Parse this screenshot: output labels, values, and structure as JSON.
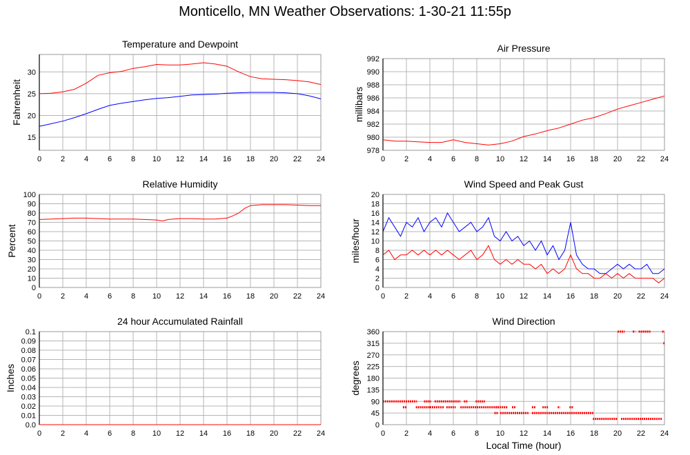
{
  "page": {
    "title": "Monticello, MN Weather Observations: 1-30-21 11:55p"
  },
  "colors": {
    "red": "#ff0000",
    "blue": "#0000ff",
    "grid": "#b4b4b4",
    "frame": "#999999"
  },
  "chart_data": [
    {
      "id": "temp",
      "type": "line",
      "title": "Temperature and Dewpoint",
      "ylabel": "Fahrenheit",
      "xlabel": "",
      "xlim": [
        0,
        24
      ],
      "ylim": [
        12,
        34
      ],
      "yticks": [
        15,
        20,
        25,
        30
      ],
      "xticks": [
        0,
        2,
        4,
        6,
        8,
        10,
        12,
        14,
        16,
        18,
        20,
        22,
        24
      ],
      "grid": true,
      "series": [
        {
          "color": "red",
          "x": [
            0,
            1,
            2,
            3,
            4,
            5,
            6,
            7,
            8,
            9,
            10,
            11,
            12,
            13,
            14,
            15,
            16,
            17,
            18,
            19,
            20,
            21,
            22,
            23,
            24
          ],
          "values": [
            25,
            25.1,
            25.4,
            26,
            27.4,
            29.2,
            29.8,
            30.1,
            30.8,
            31.2,
            31.7,
            31.6,
            31.6,
            31.8,
            32.1,
            31.8,
            31.3,
            30,
            28.9,
            28.4,
            28.3,
            28.2,
            28,
            27.7,
            27.1
          ]
        },
        {
          "color": "blue",
          "x": [
            0,
            1,
            2,
            3,
            4,
            5,
            6,
            7,
            8,
            9,
            10,
            11,
            12,
            13,
            14,
            15,
            16,
            17,
            18,
            19,
            20,
            21,
            22,
            23,
            24
          ],
          "values": [
            17.5,
            18.1,
            18.7,
            19.5,
            20.4,
            21.4,
            22.3,
            22.8,
            23.2,
            23.6,
            23.9,
            24.1,
            24.4,
            24.7,
            24.8,
            24.9,
            25.1,
            25.2,
            25.3,
            25.3,
            25.3,
            25.2,
            25,
            24.5,
            23.8
          ]
        }
      ]
    },
    {
      "id": "pressure",
      "type": "line",
      "title": "Air Pressure",
      "ylabel": "millibars",
      "xlabel": "",
      "xlim": [
        0,
        24
      ],
      "ylim": [
        978,
        992
      ],
      "yticks": [
        978,
        980,
        982,
        984,
        986,
        988,
        990,
        992
      ],
      "xticks": [
        0,
        2,
        4,
        6,
        8,
        10,
        12,
        14,
        16,
        18,
        20,
        22,
        24
      ],
      "grid": true,
      "series": [
        {
          "color": "red",
          "x": [
            0,
            1,
            2,
            3,
            4,
            5,
            6,
            7,
            8,
            9,
            10,
            11,
            12,
            13,
            14,
            15,
            16,
            17,
            18,
            19,
            20,
            21,
            22,
            23,
            24
          ],
          "values": [
            979.6,
            979.4,
            979.4,
            979.3,
            979.2,
            979.2,
            979.6,
            979.2,
            979,
            978.8,
            979,
            979.4,
            980.1,
            980.5,
            981,
            981.4,
            982,
            982.6,
            983,
            983.6,
            984.3,
            984.8,
            985.3,
            985.8,
            986.3
          ]
        }
      ]
    },
    {
      "id": "humidity",
      "type": "line",
      "title": "Relative Humidity",
      "ylabel": "Percent",
      "xlabel": "",
      "xlim": [
        0,
        24
      ],
      "ylim": [
        0,
        100
      ],
      "yticks": [
        0,
        10,
        20,
        30,
        40,
        50,
        60,
        70,
        80,
        90,
        100
      ],
      "xticks": [
        0,
        2,
        4,
        6,
        8,
        10,
        12,
        14,
        16,
        18,
        20,
        22,
        24
      ],
      "grid": true,
      "series": [
        {
          "color": "red",
          "x": [
            0,
            1,
            2,
            3,
            4,
            5,
            6,
            7,
            8,
            9,
            10,
            10.5,
            11,
            12,
            13,
            14,
            15,
            16,
            16.5,
            17,
            17.5,
            18,
            19,
            20,
            21,
            22,
            23,
            24
          ],
          "values": [
            73,
            73.5,
            74,
            74.5,
            74.5,
            74,
            73.5,
            73.5,
            73.5,
            73,
            72.5,
            71.5,
            73,
            74,
            74,
            73.5,
            73.5,
            74.5,
            77,
            80,
            85,
            88,
            89,
            89,
            89,
            88.5,
            88,
            88
          ]
        }
      ]
    },
    {
      "id": "wind",
      "type": "line",
      "title": "Wind Speed and Peak Gust",
      "ylabel": "miles/hour",
      "xlabel": "",
      "xlim": [
        0,
        24
      ],
      "ylim": [
        0,
        20
      ],
      "yticks": [
        0,
        2,
        4,
        6,
        8,
        10,
        12,
        14,
        16,
        18,
        20
      ],
      "xticks": [
        0,
        2,
        4,
        6,
        8,
        10,
        12,
        14,
        16,
        18,
        20,
        22,
        24
      ],
      "grid": true,
      "series": [
        {
          "color": "blue",
          "x": [
            0,
            0.5,
            1,
            1.5,
            2,
            2.5,
            3,
            3.5,
            4,
            4.5,
            5,
            5.5,
            6,
            6.5,
            7,
            7.5,
            8,
            8.5,
            9,
            9.5,
            10,
            10.5,
            11,
            11.5,
            12,
            12.5,
            13,
            13.5,
            14,
            14.5,
            15,
            15.5,
            16,
            16.5,
            17,
            17.5,
            18,
            18.5,
            19,
            19.5,
            20,
            20.5,
            21,
            21.5,
            22,
            22.5,
            23,
            23.5,
            24
          ],
          "values": [
            12,
            15,
            13,
            11,
            14,
            13,
            15,
            12,
            14,
            15,
            13,
            16,
            14,
            12,
            13,
            14,
            12,
            13,
            15,
            11,
            10,
            12,
            10,
            11,
            9,
            10,
            8,
            10,
            7,
            9,
            6,
            8,
            14,
            7,
            5,
            4,
            4,
            3,
            3,
            4,
            5,
            4,
            5,
            4,
            4,
            5,
            3,
            3,
            4
          ]
        },
        {
          "color": "red",
          "x": [
            0,
            0.5,
            1,
            1.5,
            2,
            2.5,
            3,
            3.5,
            4,
            4.5,
            5,
            5.5,
            6,
            6.5,
            7,
            7.5,
            8,
            8.5,
            9,
            9.5,
            10,
            10.5,
            11,
            11.5,
            12,
            12.5,
            13,
            13.5,
            14,
            14.5,
            15,
            15.5,
            16,
            16.5,
            17,
            17.5,
            18,
            18.5,
            19,
            19.5,
            20,
            20.5,
            21,
            21.5,
            22,
            22.5,
            23,
            23.5,
            24
          ],
          "values": [
            7,
            8,
            6,
            7,
            7,
            8,
            7,
            8,
            7,
            8,
            7,
            8,
            7,
            6,
            7,
            8,
            6,
            7,
            9,
            6,
            5,
            6,
            5,
            6,
            5,
            5,
            4,
            5,
            3,
            4,
            3,
            4,
            7,
            4,
            3,
            3,
            2,
            2,
            3,
            2,
            3,
            2,
            3,
            2,
            2,
            2,
            2,
            1,
            2
          ]
        }
      ]
    },
    {
      "id": "rain",
      "type": "line",
      "title": "24 hour Accumulated Rainfall",
      "ylabel": "Inches",
      "xlabel": "",
      "xlim": [
        0,
        24
      ],
      "ylim": [
        0,
        0.1
      ],
      "yticks": [
        "0.0",
        "0.01",
        "0.02",
        "0.03",
        "0.04",
        "0.05",
        "0.06",
        "0.07",
        "0.08",
        "0.09",
        "0.1"
      ],
      "xticks": [
        0,
        2,
        4,
        6,
        8,
        10,
        12,
        14,
        16,
        18,
        20,
        22,
        24
      ],
      "grid": true,
      "series": [
        {
          "color": "red",
          "x": [
            0,
            24
          ],
          "values": [
            0,
            0
          ]
        }
      ]
    },
    {
      "id": "direction",
      "type": "scatter",
      "title": "Wind Direction",
      "ylabel": "degrees",
      "xlabel": "Local Time (hour)",
      "xlim": [
        0,
        24
      ],
      "ylim": [
        0,
        360
      ],
      "yticks": [
        0,
        45,
        90,
        135,
        180,
        225,
        270,
        315,
        360
      ],
      "xticks": [
        0,
        2,
        4,
        6,
        8,
        10,
        12,
        14,
        16,
        18,
        20,
        22,
        24
      ],
      "grid": true,
      "series": [
        {
          "color": "red",
          "segments": [
            {
              "x": [
                0,
                2.9
              ],
              "y": 90
            },
            {
              "x": [
                1.7,
                2.0
              ],
              "y": 67.5
            },
            {
              "x": [
                2.8,
                4.0
              ],
              "y": 67.5
            },
            {
              "x": [
                3.5,
                4.1
              ],
              "y": 90
            },
            {
              "x": [
                4.0,
                5.2
              ],
              "y": 67.5
            },
            {
              "x": [
                4.4,
                6.6
              ],
              "y": 90
            },
            {
              "x": [
                5.4,
                6.2
              ],
              "y": 67.5
            },
            {
              "x": [
                6.6,
                9.8
              ],
              "y": 67.5
            },
            {
              "x": [
                6.9,
                7.2
              ],
              "y": 90
            },
            {
              "x": [
                7.9,
                8.7
              ],
              "y": 90
            },
            {
              "x": [
                9.6,
                10.6
              ],
              "y": 67.5
            },
            {
              "x": [
                9.5,
                9.8
              ],
              "y": 45
            },
            {
              "x": [
                10.0,
                12.4
              ],
              "y": 45
            },
            {
              "x": [
                11.0,
                11.3
              ],
              "y": 67.5
            },
            {
              "x": [
                12.7,
                18.0
              ],
              "y": 45
            },
            {
              "x": [
                12.7,
                13.0
              ],
              "y": 67.5
            },
            {
              "x": [
                13.6,
                14.1
              ],
              "y": 67.5
            },
            {
              "x": [
                14.9,
                15.1
              ],
              "y": 67.5
            },
            {
              "x": [
                15.9,
                16.2
              ],
              "y": 67.5
            },
            {
              "x": [
                17.9,
                20.0
              ],
              "y": 22.5
            },
            {
              "x": [
                20.3,
                23.8
              ],
              "y": 22.5
            },
            {
              "x": [
                20.0,
                20.6
              ],
              "y": 360
            },
            {
              "x": [
                21.3,
                21.5
              ],
              "y": 360
            },
            {
              "x": [
                21.8,
                22.8
              ],
              "y": 360
            },
            {
              "x": [
                23.8,
                24.0
              ],
              "y": 360
            },
            {
              "x": [
                23.9,
                24.0
              ],
              "y": 315
            }
          ]
        }
      ]
    }
  ]
}
